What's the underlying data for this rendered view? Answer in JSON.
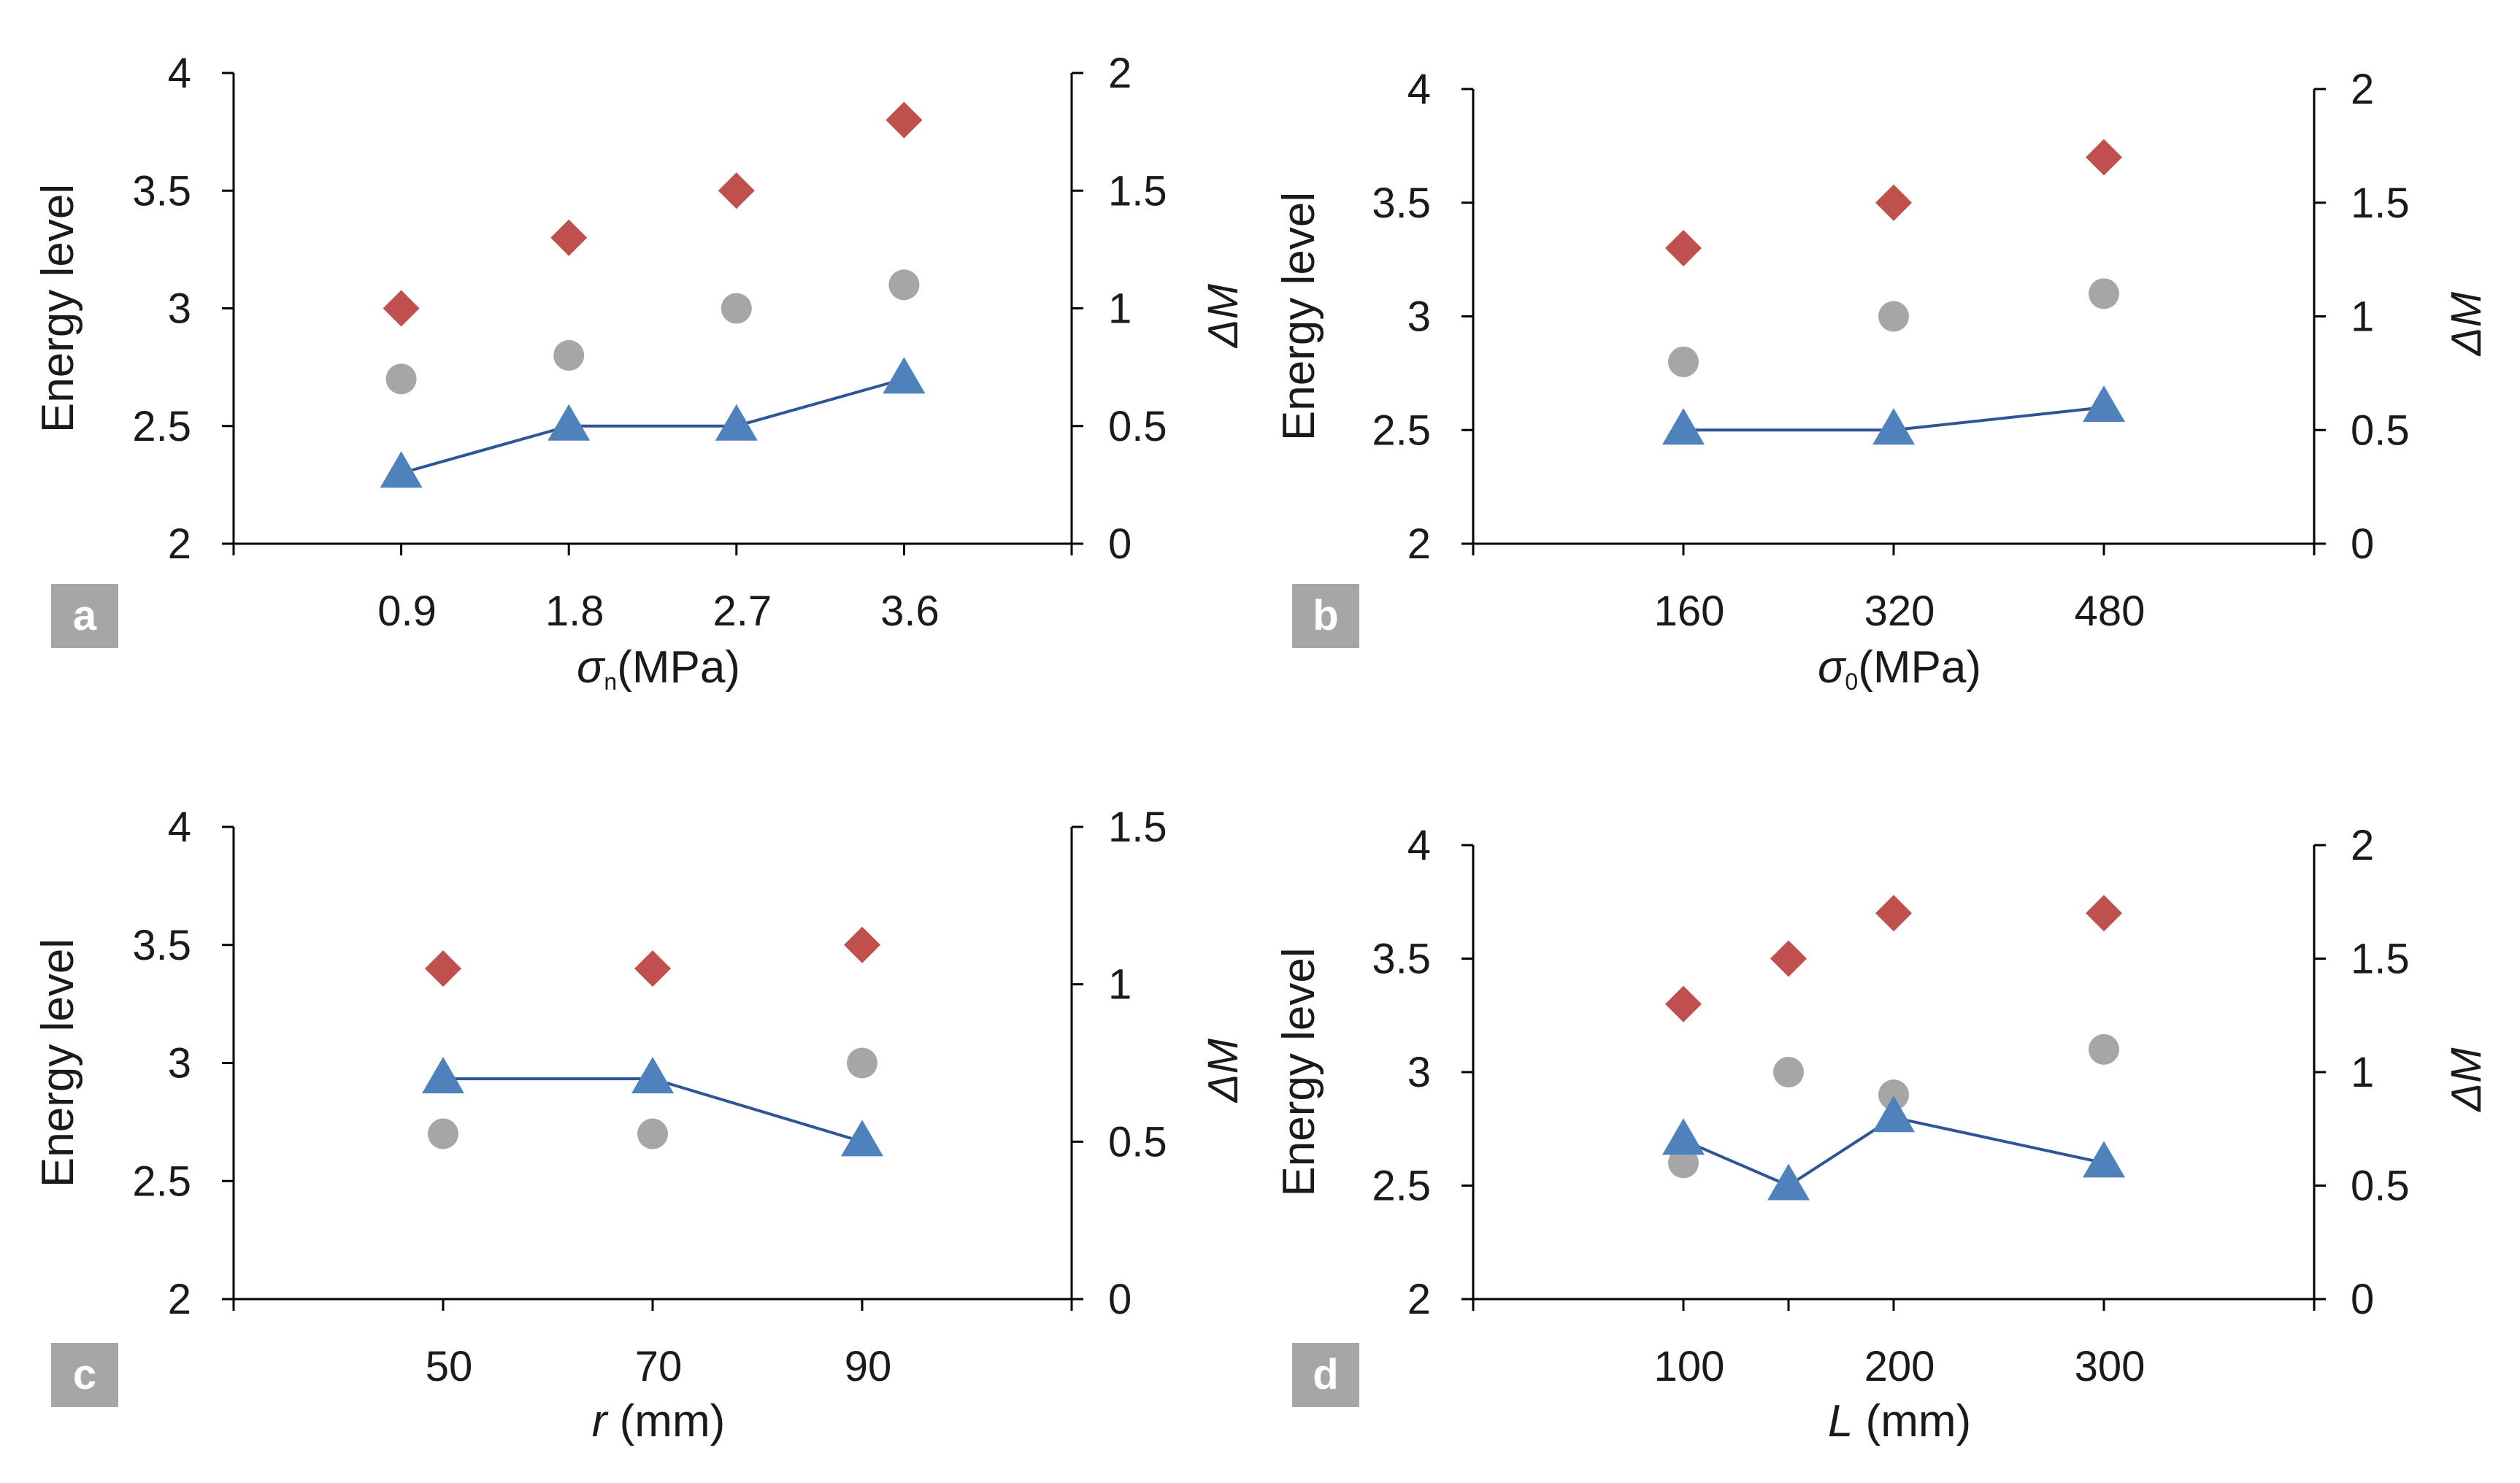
{
  "chart_data": [
    {
      "panel": "a",
      "type": "scatter",
      "ylabel": "Energy level",
      "y2label": "ΔM",
      "xlabel_parts": [
        "σ",
        "n",
        "(MPa)"
      ],
      "categories": [
        "0.9",
        "1.8",
        "2.7",
        "3.6"
      ],
      "ylim": [
        2,
        4
      ],
      "yticks": [
        "2",
        "2.5",
        "3",
        "3.5",
        "4"
      ],
      "y2lim": [
        0,
        2
      ],
      "y2ticks": [
        "0",
        "0.5",
        "1",
        "1.5",
        "2"
      ],
      "series": [
        {
          "values": [
            3.0,
            3.3,
            3.5,
            3.8
          ],
          "marker": "diamond",
          "color": "#c0504d",
          "axis": "left"
        },
        {
          "values": [
            2.7,
            2.8,
            3.0,
            3.1
          ],
          "marker": "circle",
          "color": "#a6a6a6",
          "axis": "left"
        },
        {
          "values": [
            0.3,
            0.5,
            0.5,
            0.7
          ],
          "marker": "triangle",
          "color": "#4f81bd",
          "axis": "right",
          "line": true
        }
      ]
    },
    {
      "panel": "b",
      "type": "scatter",
      "ylabel": "Energy level",
      "y2label": "ΔM",
      "xlabel_parts": [
        "σ",
        "0",
        "(MPa)"
      ],
      "categories": [
        "160",
        "320",
        "480"
      ],
      "ylim": [
        2,
        4
      ],
      "yticks": [
        "2",
        "2.5",
        "3",
        "3.5",
        "4"
      ],
      "y2lim": [
        0,
        2
      ],
      "y2ticks": [
        "0",
        "0.5",
        "1",
        "1.5",
        "2"
      ],
      "series": [
        {
          "values": [
            3.3,
            3.5,
            3.7
          ],
          "marker": "diamond",
          "color": "#c0504d",
          "axis": "left"
        },
        {
          "values": [
            2.8,
            3.0,
            3.1
          ],
          "marker": "circle",
          "color": "#a6a6a6",
          "axis": "left"
        },
        {
          "values": [
            0.5,
            0.5,
            0.6
          ],
          "marker": "triangle",
          "color": "#4f81bd",
          "axis": "right",
          "line": true
        }
      ]
    },
    {
      "panel": "c",
      "type": "scatter",
      "ylabel": "Energy level",
      "y2label": "ΔM",
      "xlabel_parts": [
        "r",
        "",
        " (mm)"
      ],
      "categories": [
        "50",
        "70",
        "90"
      ],
      "ylim": [
        2,
        4
      ],
      "yticks": [
        "2",
        "2.5",
        "3",
        "3.5",
        "4"
      ],
      "y2lim": [
        0,
        1.5
      ],
      "y2ticks": [
        "0",
        "0.5",
        "1",
        "1.5"
      ],
      "series": [
        {
          "values": [
            3.4,
            3.4,
            3.5
          ],
          "marker": "diamond",
          "color": "#c0504d",
          "axis": "left"
        },
        {
          "values": [
            2.7,
            2.7,
            3.0
          ],
          "marker": "circle",
          "color": "#a6a6a6",
          "axis": "left"
        },
        {
          "values": [
            0.7,
            0.7,
            0.5
          ],
          "marker": "triangle",
          "color": "#4f81bd",
          "axis": "right",
          "line": true
        }
      ]
    },
    {
      "panel": "d",
      "type": "scatter",
      "ylabel": "Energy level",
      "y2label": "ΔM",
      "xlabel_parts": [
        "L",
        "",
        " (mm)"
      ],
      "categories": [
        "100",
        "150",
        "200",
        "300"
      ],
      "category_labels": [
        "100",
        "",
        "200",
        "300"
      ],
      "ylim": [
        2,
        4
      ],
      "yticks": [
        "2",
        "2.5",
        "3",
        "3.5",
        "4"
      ],
      "y2lim": [
        0,
        2
      ],
      "y2ticks": [
        "0",
        "0.5",
        "1",
        "1.5",
        "2"
      ],
      "series": [
        {
          "values": [
            3.3,
            3.5,
            3.7,
            3.7
          ],
          "marker": "diamond",
          "color": "#c0504d",
          "axis": "left"
        },
        {
          "values": [
            2.6,
            3.0,
            2.9,
            3.1
          ],
          "marker": "circle",
          "color": "#a6a6a6",
          "axis": "left"
        },
        {
          "values": [
            0.7,
            0.5,
            0.8,
            0.6
          ],
          "marker": "triangle",
          "color": "#4f81bd",
          "axis": "right",
          "line": true
        }
      ]
    }
  ]
}
